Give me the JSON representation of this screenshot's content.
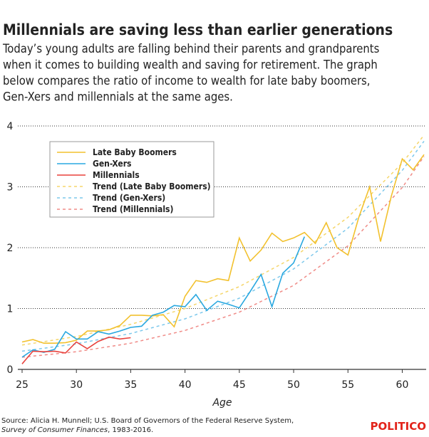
{
  "chart_data": {
    "type": "line",
    "title": "Millennials are saving less than earlier generations",
    "subtitle": [
      "Today’s young adults are falling behind their parents and grandparents",
      "when it comes to building wealth and saving for retirement. The graph",
      "below compares the ratio of income to wealth for late baby boomers,",
      "Gen-Xers and millennials at the same ages."
    ],
    "x_label": "Age",
    "xlim": [
      25,
      62.2
    ],
    "xticks": [
      25,
      30,
      35,
      40,
      45,
      50,
      55,
      60
    ],
    "ylim": [
      0,
      4
    ],
    "yticks": [
      0,
      1,
      2,
      3,
      4
    ],
    "grid": true,
    "legend": "upper left",
    "series": [
      {
        "name": "Late Baby Boomers",
        "color": "#f2c12e",
        "dashed": false,
        "x": [
          25,
          26,
          27,
          28,
          29,
          30,
          31,
          32,
          33,
          34,
          35,
          36,
          37,
          38,
          39,
          40,
          41,
          42,
          43,
          44,
          45,
          46,
          47,
          48,
          49,
          50,
          51,
          52,
          53,
          54,
          55,
          56,
          57,
          58,
          59,
          60,
          61,
          62
        ],
        "values": [
          0.45,
          0.49,
          0.43,
          0.43,
          0.44,
          0.48,
          0.63,
          0.63,
          0.65,
          0.72,
          0.89,
          0.89,
          0.88,
          0.9,
          0.7,
          1.2,
          1.46,
          1.43,
          1.49,
          1.46,
          2.16,
          1.78,
          1.96,
          2.24,
          2.1,
          2.16,
          2.25,
          2.07,
          2.41,
          2.0,
          1.88,
          2.5,
          3.0,
          2.1,
          2.85,
          3.46,
          3.28,
          3.53
        ]
      },
      {
        "name": "Gen-Xers",
        "color": "#29a8e0",
        "dashed": false,
        "x": [
          25,
          26,
          27,
          28,
          29,
          30,
          31,
          32,
          33,
          34,
          35,
          36,
          37,
          38,
          39,
          40,
          41,
          42,
          43,
          44,
          45,
          46,
          47,
          48,
          49,
          50,
          51
        ],
        "values": [
          0.2,
          0.32,
          0.28,
          0.33,
          0.62,
          0.5,
          0.5,
          0.62,
          0.58,
          0.63,
          0.69,
          0.71,
          0.89,
          0.94,
          1.05,
          1.03,
          1.23,
          0.97,
          1.12,
          1.07,
          1.01,
          1.28,
          1.56,
          1.03,
          1.58,
          1.75,
          2.18
        ]
      },
      {
        "name": "Millennials",
        "color": "#e8413c",
        "dashed": false,
        "x": [
          25,
          26,
          27,
          28,
          29,
          30,
          31,
          32,
          33,
          34,
          35
        ],
        "values": [
          0.09,
          0.3,
          0.29,
          0.3,
          0.27,
          0.45,
          0.34,
          0.46,
          0.53,
          0.5,
          0.52
        ]
      },
      {
        "name": "Trend (Late Baby Boomers)",
        "color": "#f5d66b",
        "dashed": true,
        "x": [
          25,
          30,
          35,
          40,
          45,
          50,
          55,
          60,
          62
        ],
        "values": [
          0.4,
          0.54,
          0.74,
          1.0,
          1.36,
          1.84,
          2.5,
          3.39,
          3.85
        ]
      },
      {
        "name": "Trend (Gen-Xers)",
        "color": "#7cc8ec",
        "dashed": true,
        "x": [
          25,
          30,
          35,
          40,
          45,
          50,
          55,
          60,
          62
        ],
        "values": [
          0.3,
          0.42,
          0.59,
          0.83,
          1.17,
          1.65,
          2.32,
          3.27,
          3.75
        ]
      },
      {
        "name": "Trend (Millennials)",
        "color": "#f08b87",
        "dashed": true,
        "x": [
          25,
          30,
          35,
          40,
          45,
          50,
          55,
          60,
          62
        ],
        "values": [
          0.2,
          0.29,
          0.43,
          0.64,
          0.94,
          1.38,
          2.03,
          2.99,
          3.5
        ]
      }
    ],
    "source": "Source: Alicia H. Munnell; U.S. Board of Governors of the Federal Reserve System,",
    "source_italic": "Survey of Consumer Finances",
    "source_end": ", 1983-2016.",
    "logo": "POLITICO"
  }
}
